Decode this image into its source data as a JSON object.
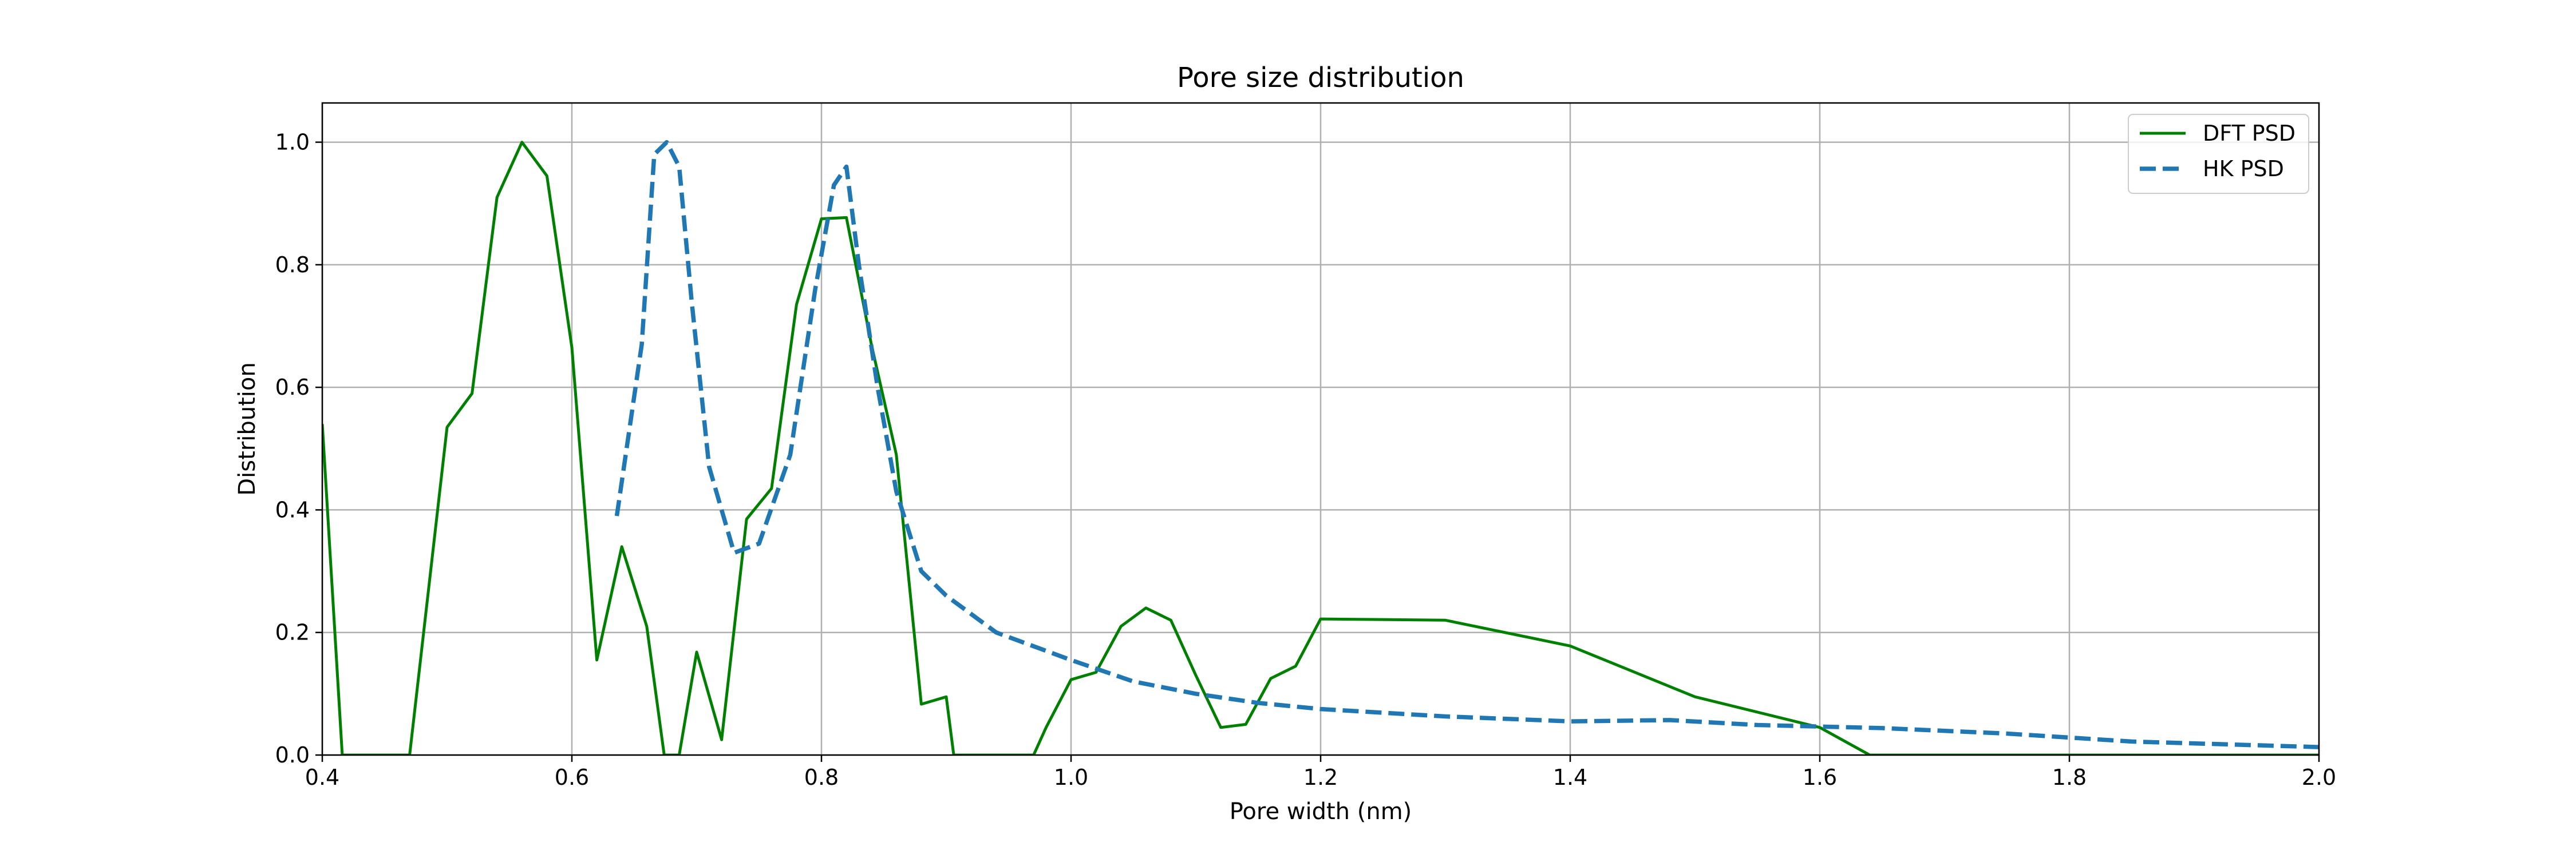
{
  "chart_data": {
    "type": "line",
    "title": "Pore size distribution",
    "xlabel": "Pore width (nm)",
    "ylabel": "Distribution",
    "xlim": [
      0.4,
      2.0
    ],
    "ylim": [
      0.0,
      1.064
    ],
    "xticks": [
      "0.4",
      "0.6",
      "0.8",
      "1.0",
      "1.2",
      "1.4",
      "1.6",
      "1.8",
      "2.0"
    ],
    "yticks": [
      "0.0",
      "0.2",
      "0.4",
      "0.6",
      "0.8",
      "1.0"
    ],
    "grid": true,
    "legend_position": "top-right",
    "series": [
      {
        "name": "DFT PSD",
        "color": "#008000",
        "style": "solid",
        "points": [
          [
            0.4,
            0.54
          ],
          [
            0.416,
            0.0
          ],
          [
            0.47,
            0.0
          ],
          [
            0.5,
            0.535
          ],
          [
            0.52,
            0.59
          ],
          [
            0.54,
            0.91
          ],
          [
            0.56,
            1.0
          ],
          [
            0.58,
            0.945
          ],
          [
            0.6,
            0.665
          ],
          [
            0.62,
            0.155
          ],
          [
            0.64,
            0.34
          ],
          [
            0.66,
            0.21
          ],
          [
            0.674,
            0.0
          ],
          [
            0.686,
            0.0
          ],
          [
            0.7,
            0.168
          ],
          [
            0.72,
            0.025
          ],
          [
            0.74,
            0.385
          ],
          [
            0.76,
            0.435
          ],
          [
            0.78,
            0.735
          ],
          [
            0.8,
            0.875
          ],
          [
            0.82,
            0.877
          ],
          [
            0.84,
            0.67
          ],
          [
            0.86,
            0.49
          ],
          [
            0.88,
            0.083
          ],
          [
            0.9,
            0.095
          ],
          [
            0.906,
            0.0
          ],
          [
            0.97,
            0.0
          ],
          [
            0.98,
            0.045
          ],
          [
            1.0,
            0.123
          ],
          [
            1.02,
            0.135
          ],
          [
            1.04,
            0.21
          ],
          [
            1.06,
            0.24
          ],
          [
            1.08,
            0.22
          ],
          [
            1.1,
            0.13
          ],
          [
            1.12,
            0.045
          ],
          [
            1.14,
            0.05
          ],
          [
            1.16,
            0.125
          ],
          [
            1.18,
            0.145
          ],
          [
            1.2,
            0.222
          ],
          [
            1.3,
            0.22
          ],
          [
            1.4,
            0.178
          ],
          [
            1.5,
            0.095
          ],
          [
            1.6,
            0.045
          ],
          [
            1.64,
            0.0
          ],
          [
            2.0,
            0.0
          ]
        ]
      },
      {
        "name": "HK PSD",
        "color": "#1f77b4",
        "style": "dashed",
        "points": [
          [
            0.636,
            0.39
          ],
          [
            0.656,
            0.67
          ],
          [
            0.666,
            0.98
          ],
          [
            0.676,
            1.0
          ],
          [
            0.686,
            0.96
          ],
          [
            0.696,
            0.74
          ],
          [
            0.71,
            0.47
          ],
          [
            0.73,
            0.33
          ],
          [
            0.75,
            0.345
          ],
          [
            0.775,
            0.49
          ],
          [
            0.795,
            0.76
          ],
          [
            0.81,
            0.93
          ],
          [
            0.82,
            0.96
          ],
          [
            0.83,
            0.8
          ],
          [
            0.845,
            0.6
          ],
          [
            0.86,
            0.43
          ],
          [
            0.88,
            0.3
          ],
          [
            0.9,
            0.26
          ],
          [
            0.94,
            0.2
          ],
          [
            1.0,
            0.155
          ],
          [
            1.05,
            0.12
          ],
          [
            1.1,
            0.1
          ],
          [
            1.15,
            0.085
          ],
          [
            1.2,
            0.075
          ],
          [
            1.3,
            0.063
          ],
          [
            1.4,
            0.055
          ],
          [
            1.48,
            0.057
          ],
          [
            1.55,
            0.049
          ],
          [
            1.65,
            0.044
          ],
          [
            1.75,
            0.035
          ],
          [
            1.85,
            0.022
          ],
          [
            2.0,
            0.013
          ]
        ]
      }
    ]
  }
}
